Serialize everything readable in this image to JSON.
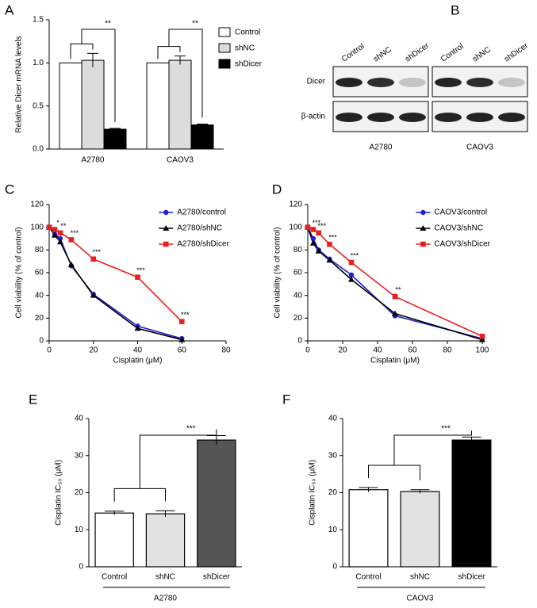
{
  "chart_data": [
    {
      "type": "bar",
      "label": "A",
      "ylabel": "Relative Dicer mRNA levels",
      "categories": [
        "A2780",
        "CAOV3"
      ],
      "series": [
        {
          "name": "Control",
          "color": "#ffffff",
          "values": [
            1.0,
            1.0
          ],
          "errors": [
            0,
            0
          ]
        },
        {
          "name": "shNC",
          "color": "#dcdcdc",
          "values": [
            1.03,
            1.03
          ],
          "errors": [
            0.08,
            0.05
          ]
        },
        {
          "name": "shDicer",
          "color": "#000000",
          "values": [
            0.23,
            0.28
          ],
          "errors": [
            0.01,
            0.01
          ]
        }
      ],
      "significance": [
        "**",
        "**"
      ],
      "ylim": [
        0,
        1.5
      ],
      "yticks": [
        {
          "value": 0,
          "label": "0.0"
        },
        {
          "value": 0.5,
          "label": "0.5"
        },
        {
          "value": 1,
          "label": "1.0"
        },
        {
          "value": 1.5,
          "label": "1.5"
        }
      ]
    },
    {
      "type": "blot",
      "label": "B",
      "lanes": [
        "Control",
        "shNC",
        "shDicer",
        "Control",
        "shNC",
        "shDicer"
      ],
      "rows": [
        "Dicer",
        "β-actin"
      ],
      "groups": [
        "A2780",
        "CAOV3"
      ]
    },
    {
      "type": "line",
      "label": "C",
      "xlabel": "Cisplatin (μM)",
      "ylabel": "Cell viability (% of control)",
      "x": [
        0,
        2.5,
        5,
        10,
        20,
        40,
        60
      ],
      "series": [
        {
          "name": "A2780/control",
          "color": "#2020d0",
          "values": [
            100,
            94,
            90,
            66,
            41,
            13,
            2
          ]
        },
        {
          "name": "A2780/shNC",
          "color": "#000000",
          "values": [
            100,
            93,
            87,
            67,
            40,
            11,
            1
          ]
        },
        {
          "name": "A2780/shDicer",
          "color": "#e8211f",
          "values": [
            100,
            98,
            95,
            89,
            72,
            56,
            17
          ]
        }
      ],
      "significance": [
        null,
        "*",
        "**",
        "***",
        "***",
        "***",
        "***"
      ],
      "xlim": [
        0,
        80
      ],
      "xticks": [
        0,
        20,
        40,
        60,
        80
      ],
      "ylim": [
        0,
        120
      ],
      "yticks": [
        0,
        20,
        40,
        60,
        80,
        100,
        120
      ]
    },
    {
      "type": "line",
      "label": "D",
      "xlabel": "Cisplatin (μM)",
      "ylabel": "Cell viability (% of control)",
      "x": [
        0,
        3.125,
        6.25,
        12.5,
        25,
        50,
        100
      ],
      "series": [
        {
          "name": "CAOV3/control",
          "color": "#2020d0",
          "values": [
            100,
            90,
            80,
            72,
            58,
            22,
            2
          ]
        },
        {
          "name": "CAOV3/shNC",
          "color": "#000000",
          "values": [
            100,
            86,
            79,
            71,
            54,
            24,
            1
          ]
        },
        {
          "name": "CAOV3/shDicer",
          "color": "#e8211f",
          "values": [
            100,
            98,
            95,
            85,
            69,
            39,
            4
          ]
        }
      ],
      "significance": [
        null,
        "***",
        "***",
        "***",
        "***",
        "**",
        null
      ],
      "xlim": [
        0,
        100
      ],
      "xticks": [
        0,
        20,
        40,
        60,
        80,
        100
      ],
      "ylim": [
        0,
        120
      ],
      "yticks": [
        0,
        20,
        40,
        60,
        80,
        100,
        120
      ]
    },
    {
      "type": "bar",
      "label": "E",
      "ylabel": "Cisplatin IC₅₀ (μM)",
      "categories": [
        "Control",
        "shNC",
        "shDicer"
      ],
      "values": [
        14.5,
        14.3,
        34.2
      ],
      "errors": [
        0.5,
        0.8,
        1.2
      ],
      "colors": [
        "#ffffff",
        "#e2e2e2",
        "#555555"
      ],
      "significance": "***",
      "group_label": "A2780",
      "ylim": [
        0,
        40
      ],
      "yticks": [
        0,
        10,
        20,
        30,
        40
      ]
    },
    {
      "type": "bar",
      "label": "F",
      "ylabel": "Cisplatin IC₅₀ (μM)",
      "categories": [
        "Control",
        "shNC",
        "shDicer"
      ],
      "values": [
        20.8,
        20.3,
        34.2
      ],
      "errors": [
        0.6,
        0.5,
        0.8
      ],
      "colors": [
        "#ffffff",
        "#e2e2e2",
        "#000000"
      ],
      "significance": "***",
      "group_label": "CAOV3",
      "ylim": [
        0,
        40
      ],
      "yticks": [
        0,
        10,
        20,
        30,
        40
      ]
    }
  ]
}
